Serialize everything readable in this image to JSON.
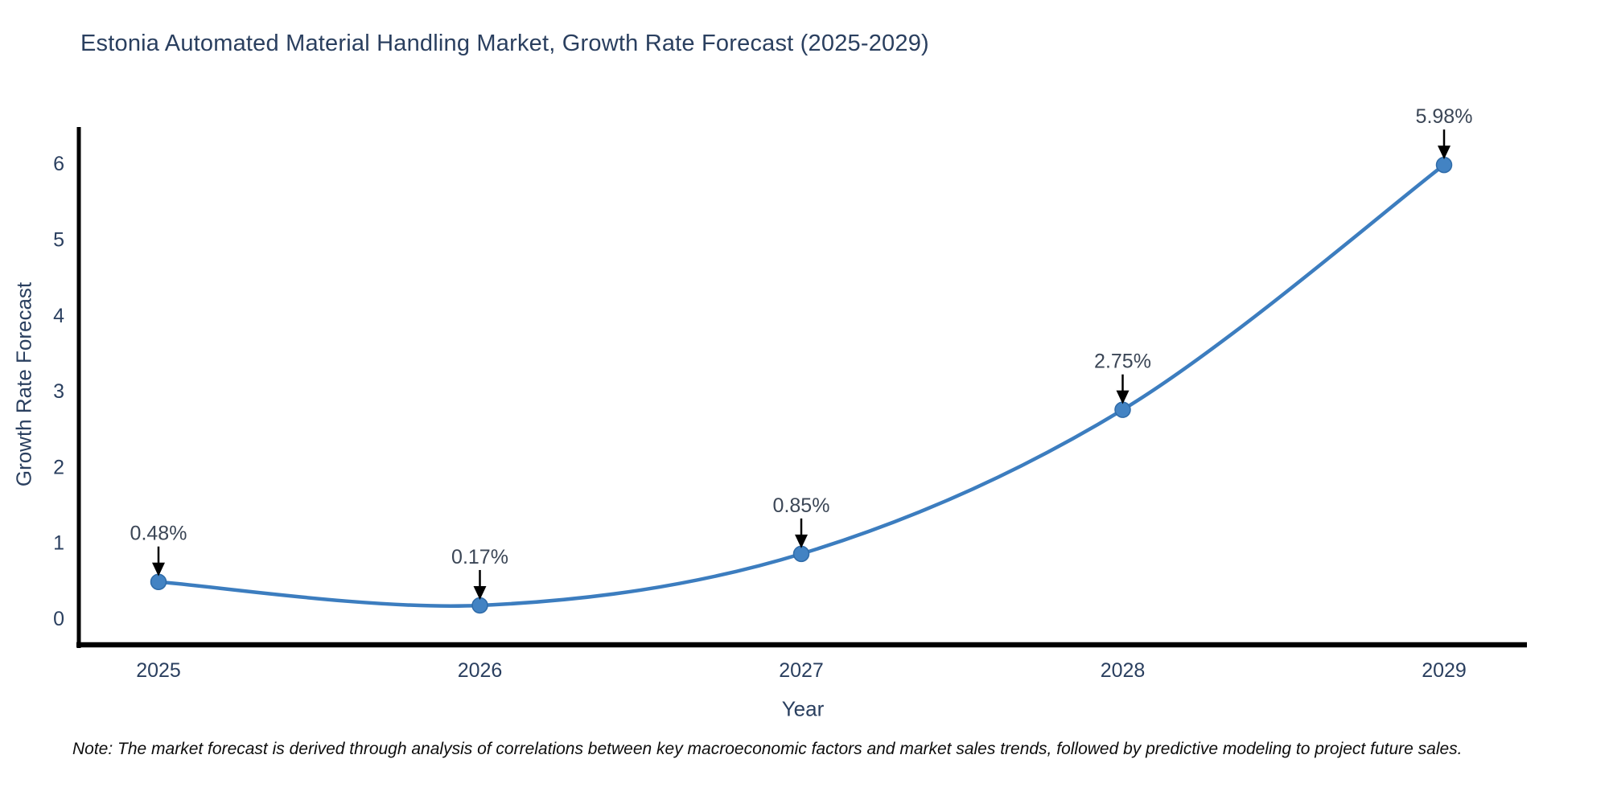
{
  "chart_data": {
    "type": "line",
    "title": "Estonia Automated Material Handling Market, Growth Rate Forecast (2025-2029)",
    "xlabel": "Year",
    "ylabel": "Growth Rate Forecast",
    "categories": [
      "2025",
      "2026",
      "2027",
      "2028",
      "2029"
    ],
    "series": [
      {
        "name": "Growth Rate Forecast",
        "values": [
          0.48,
          0.17,
          0.85,
          2.75,
          5.98
        ]
      }
    ],
    "point_labels": [
      "0.48%",
      "0.17%",
      "0.85%",
      "2.75%",
      "5.98%"
    ],
    "yticks": [
      0,
      1,
      2,
      3,
      4,
      5,
      6
    ],
    "ylim": [
      -0.35,
      6.48
    ],
    "grid": false,
    "legend": "none",
    "line_color": "#3c7dbf",
    "marker_color": "#4383c3",
    "marker_edge_color": "#2f6ba8",
    "axis_color": "#000000",
    "text_color": "#2a3f5f",
    "annotation_text_color": "#3b4656",
    "annotation_arrow_color": "#000000"
  },
  "note": "Note: The market forecast is derived through analysis of correlations between key macroeconomic factors and market sales trends, followed by predictive modeling to project future sales."
}
